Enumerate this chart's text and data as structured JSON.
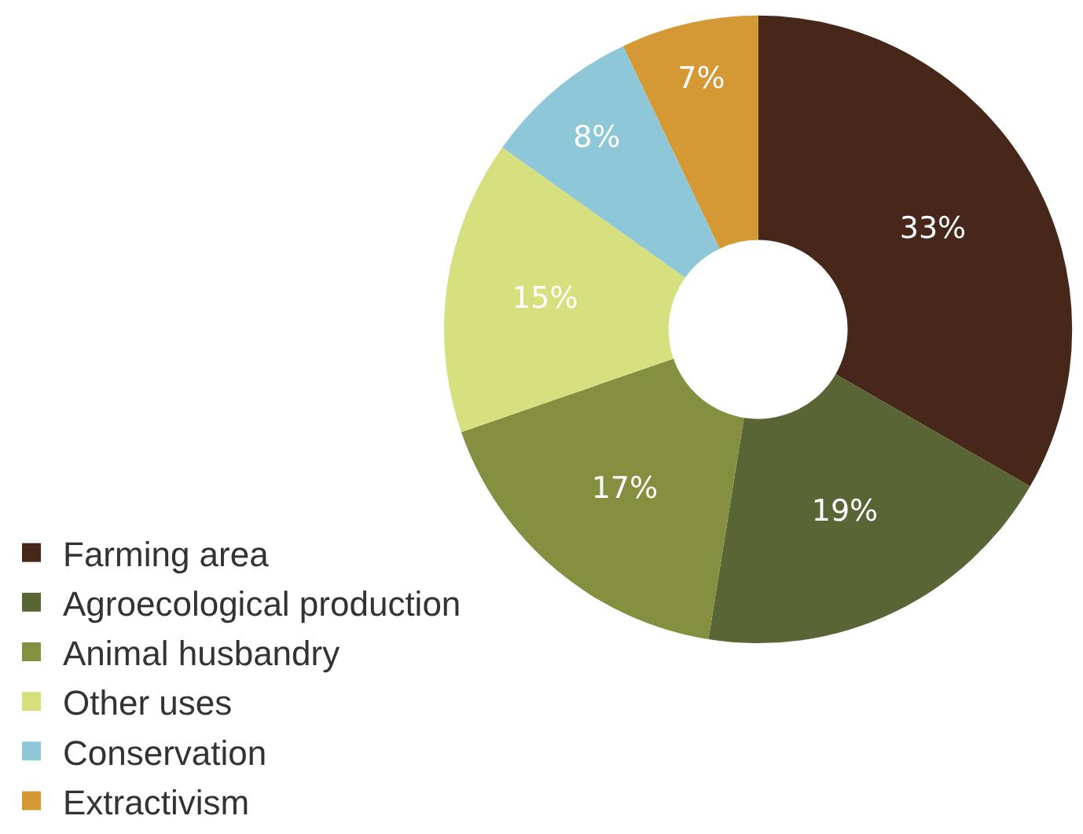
{
  "chart_data": {
    "type": "donut",
    "categories": [
      "Farming area",
      "Agroecological production",
      "Animal husbandry",
      "Other uses",
      "Conservation",
      "Extractivism"
    ],
    "values": [
      33,
      19,
      17,
      15,
      8,
      7
    ],
    "value_labels": [
      "33%",
      "19%",
      "17%",
      "15%",
      "8%",
      "7%"
    ],
    "colors": [
      "#46271a",
      "#5a6535",
      "#84903f",
      "#d6e07e",
      "#8ec8d8",
      "#d49834"
    ],
    "legend": "bottom left"
  }
}
